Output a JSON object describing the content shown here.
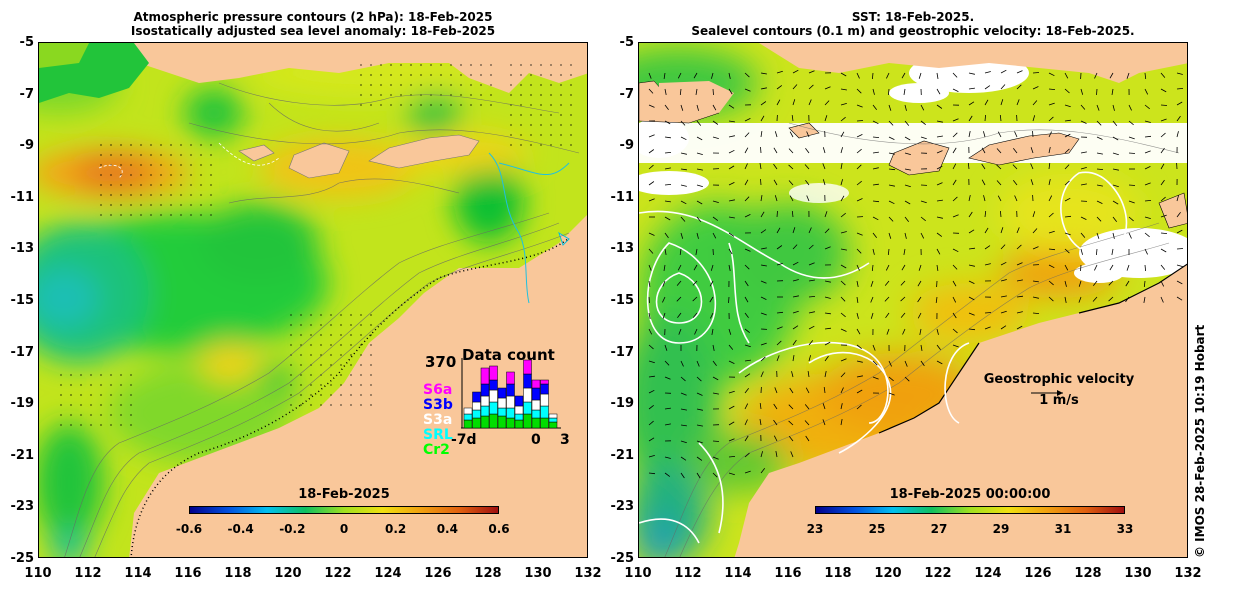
{
  "left_panel": {
    "title_line1": "Atmospheric pressure contours (2 hPa): 18-Feb-2025",
    "title_line2": "Isostatically adjusted sea level anomaly: 18-Feb-2025",
    "colorbar": {
      "title": "18-Feb-2025",
      "ticks": [
        "-0.6",
        "-0.4",
        "-0.2",
        "0",
        "0.2",
        "0.4",
        "0.6"
      ],
      "range": [
        -0.6,
        0.6
      ]
    },
    "data_count": {
      "title": "Data count",
      "max": "370",
      "satellites": [
        {
          "label": "S6a",
          "color": "#ff00ff"
        },
        {
          "label": "S3b",
          "color": "#0000ff"
        },
        {
          "label": "S3a",
          "color": "#ffffff"
        },
        {
          "label": "SRL",
          "color": "#00ffff"
        },
        {
          "label": "Cr2",
          "color": "#00ff00"
        }
      ],
      "x_labels": [
        "-7d",
        "0",
        "3"
      ]
    }
  },
  "right_panel": {
    "title_line1": "SST: 18-Feb-2025.",
    "title_line2": "Sealevel contours (0.1 m) and geostrophic velocity: 18-Feb-2025.",
    "colorbar": {
      "title": "18-Feb-2025 00:00:00",
      "ticks": [
        "23",
        "25",
        "27",
        "29",
        "31",
        "33"
      ],
      "range": [
        23,
        33
      ]
    },
    "velocity": {
      "label": "Geostrophic velocity",
      "scale": "1 m/s"
    }
  },
  "axes": {
    "lat_ticks": [
      "-5",
      "-7",
      "-9",
      "-11",
      "-13",
      "-15",
      "-17",
      "-19",
      "-21",
      "-23",
      "-25"
    ],
    "lon_ticks": [
      "110",
      "112",
      "114",
      "116",
      "118",
      "120",
      "122",
      "124",
      "126",
      "128",
      "130",
      "132"
    ]
  },
  "copyright": "© IMOS 28-Feb-2025 10:19 Hobart",
  "colors": {
    "land": "#f9c79a",
    "ocean_base_left": "#b2e020",
    "ocean_base_right": "#c8e020"
  }
}
